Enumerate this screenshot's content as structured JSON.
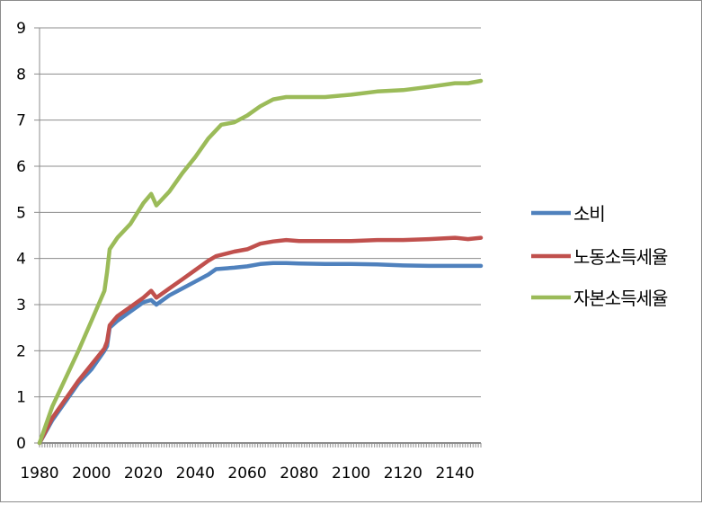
{
  "chart_data": {
    "type": "line",
    "title": "",
    "xlabel": "",
    "ylabel": "",
    "xlim": [
      1980,
      2150
    ],
    "ylim": [
      0,
      9
    ],
    "x_ticks": [
      "1980",
      "2000",
      "2020",
      "2040",
      "2060",
      "2080",
      "2100",
      "2120",
      "2140"
    ],
    "y_ticks": [
      "0",
      "1",
      "2",
      "3",
      "4",
      "5",
      "6",
      "7",
      "8",
      "9"
    ],
    "grid": "horizontal",
    "legend_position": "right",
    "series": [
      {
        "name": "소비",
        "color": "#4f81bd",
        "points": [
          [
            1980,
            0
          ],
          [
            1985,
            0.5
          ],
          [
            1990,
            0.9
          ],
          [
            1995,
            1.3
          ],
          [
            2000,
            1.6
          ],
          [
            2005,
            2.0
          ],
          [
            2006,
            2.1
          ],
          [
            2007,
            2.5
          ],
          [
            2010,
            2.65
          ],
          [
            2015,
            2.85
          ],
          [
            2020,
            3.05
          ],
          [
            2023,
            3.1
          ],
          [
            2025,
            3.0
          ],
          [
            2030,
            3.2
          ],
          [
            2035,
            3.35
          ],
          [
            2040,
            3.5
          ],
          [
            2045,
            3.65
          ],
          [
            2048,
            3.77
          ],
          [
            2055,
            3.8
          ],
          [
            2060,
            3.83
          ],
          [
            2065,
            3.88
          ],
          [
            2070,
            3.9
          ],
          [
            2075,
            3.9
          ],
          [
            2080,
            3.89
          ],
          [
            2090,
            3.88
          ],
          [
            2100,
            3.88
          ],
          [
            2110,
            3.87
          ],
          [
            2120,
            3.85
          ],
          [
            2130,
            3.84
          ],
          [
            2140,
            3.84
          ],
          [
            2150,
            3.84
          ]
        ]
      },
      {
        "name": "노동소득세율",
        "color": "#c0504d",
        "points": [
          [
            1980,
            0
          ],
          [
            1985,
            0.55
          ],
          [
            1990,
            0.95
          ],
          [
            1995,
            1.35
          ],
          [
            2000,
            1.7
          ],
          [
            2005,
            2.05
          ],
          [
            2006,
            2.2
          ],
          [
            2007,
            2.55
          ],
          [
            2010,
            2.75
          ],
          [
            2015,
            2.95
          ],
          [
            2020,
            3.15
          ],
          [
            2023,
            3.3
          ],
          [
            2025,
            3.15
          ],
          [
            2030,
            3.35
          ],
          [
            2035,
            3.55
          ],
          [
            2040,
            3.75
          ],
          [
            2045,
            3.95
          ],
          [
            2048,
            4.05
          ],
          [
            2055,
            4.15
          ],
          [
            2060,
            4.2
          ],
          [
            2065,
            4.32
          ],
          [
            2070,
            4.37
          ],
          [
            2075,
            4.4
          ],
          [
            2080,
            4.38
          ],
          [
            2090,
            4.38
          ],
          [
            2100,
            4.38
          ],
          [
            2110,
            4.4
          ],
          [
            2120,
            4.4
          ],
          [
            2130,
            4.42
          ],
          [
            2140,
            4.45
          ],
          [
            2145,
            4.42
          ],
          [
            2150,
            4.45
          ]
        ]
      },
      {
        "name": "자본소득세율",
        "color": "#9bbb59",
        "points": [
          [
            1980,
            0
          ],
          [
            1985,
            0.8
          ],
          [
            1990,
            1.4
          ],
          [
            1995,
            2.0
          ],
          [
            2000,
            2.65
          ],
          [
            2005,
            3.3
          ],
          [
            2006,
            3.7
          ],
          [
            2007,
            4.2
          ],
          [
            2010,
            4.45
          ],
          [
            2015,
            4.75
          ],
          [
            2020,
            5.2
          ],
          [
            2023,
            5.4
          ],
          [
            2025,
            5.15
          ],
          [
            2030,
            5.45
          ],
          [
            2035,
            5.85
          ],
          [
            2040,
            6.2
          ],
          [
            2045,
            6.6
          ],
          [
            2050,
            6.9
          ],
          [
            2055,
            6.95
          ],
          [
            2060,
            7.1
          ],
          [
            2065,
            7.3
          ],
          [
            2070,
            7.45
          ],
          [
            2075,
            7.5
          ],
          [
            2080,
            7.5
          ],
          [
            2090,
            7.5
          ],
          [
            2100,
            7.55
          ],
          [
            2110,
            7.62
          ],
          [
            2120,
            7.65
          ],
          [
            2130,
            7.72
          ],
          [
            2140,
            7.8
          ],
          [
            2145,
            7.8
          ],
          [
            2150,
            7.85
          ]
        ]
      }
    ]
  }
}
